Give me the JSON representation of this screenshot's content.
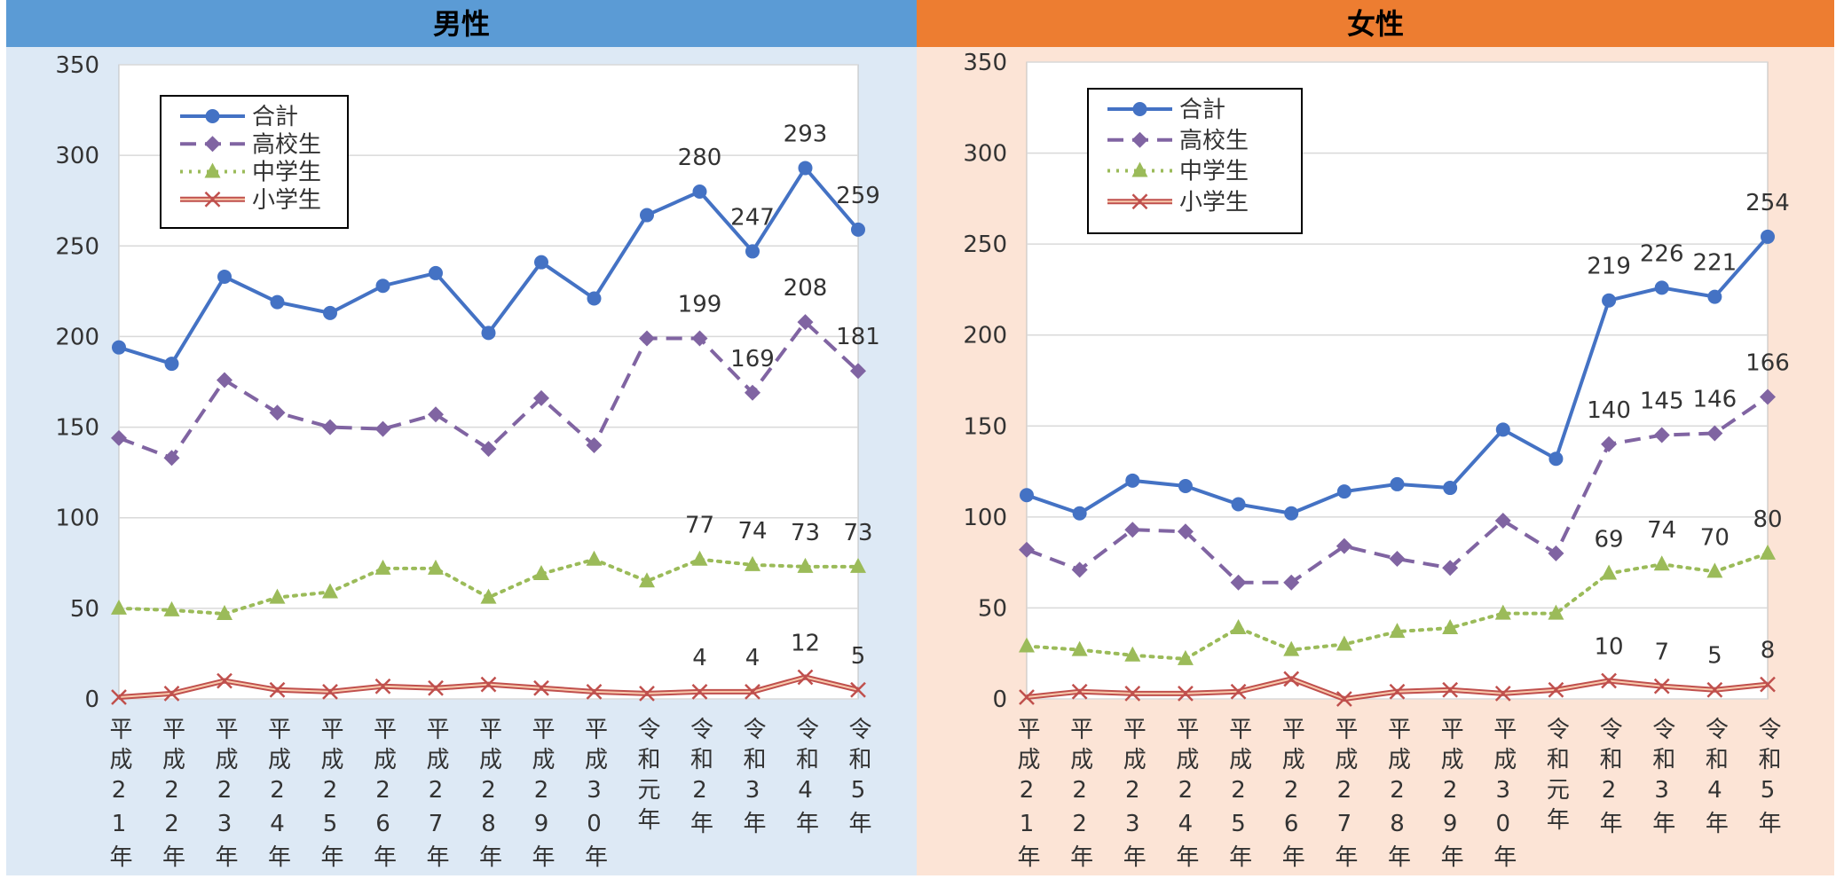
{
  "chart_data": [
    {
      "type": "line",
      "title": "男性",
      "categories": [
        "平成21年",
        "平成22年",
        "平成23年",
        "平成24年",
        "平成25年",
        "平成26年",
        "平成27年",
        "平成28年",
        "平成29年",
        "平成30年",
        "令和元年",
        "令和2年",
        "令和3年",
        "令和4年",
        "令和5年"
      ],
      "series": [
        {
          "name": "合計",
          "color": "#4472c4",
          "values": [
            194,
            185,
            233,
            219,
            213,
            228,
            235,
            202,
            241,
            221,
            267,
            280,
            247,
            293,
            259
          ]
        },
        {
          "name": "高校生",
          "color": "#8064a2",
          "values": [
            144,
            133,
            176,
            158,
            150,
            149,
            157,
            138,
            166,
            140,
            199,
            199,
            169,
            208,
            181
          ]
        },
        {
          "name": "中学生",
          "color": "#9bbb59",
          "values": [
            50,
            49,
            47,
            56,
            59,
            72,
            72,
            56,
            69,
            77,
            65,
            77,
            74,
            73,
            73
          ]
        },
        {
          "name": "小学生",
          "color": "#c0504d",
          "values": [
            1,
            3,
            10,
            5,
            4,
            7,
            6,
            8,
            6,
            4,
            3,
            4,
            4,
            12,
            5
          ]
        }
      ],
      "ylim": [
        0,
        350
      ],
      "yticks": [
        0,
        50,
        100,
        150,
        200,
        250,
        300,
        350
      ],
      "grid": true,
      "labeled_points": [
        11,
        12,
        13,
        14
      ]
    },
    {
      "type": "line",
      "title": "女性",
      "categories": [
        "平成21年",
        "平成22年",
        "平成23年",
        "平成24年",
        "平成25年",
        "平成26年",
        "平成27年",
        "平成28年",
        "平成29年",
        "平成30年",
        "令和元年",
        "令和2年",
        "令和3年",
        "令和4年",
        "令和5年"
      ],
      "series": [
        {
          "name": "合計",
          "color": "#4472c4",
          "values": [
            112,
            102,
            120,
            117,
            107,
            102,
            114,
            118,
            116,
            148,
            132,
            219,
            226,
            221,
            254
          ]
        },
        {
          "name": "高校生",
          "color": "#8064a2",
          "values": [
            82,
            71,
            93,
            92,
            64,
            64,
            84,
            77,
            72,
            98,
            80,
            140,
            145,
            146,
            166
          ]
        },
        {
          "name": "中学生",
          "color": "#9bbb59",
          "values": [
            29,
            27,
            24,
            22,
            39,
            27,
            30,
            37,
            39,
            47,
            47,
            69,
            74,
            70,
            80
          ]
        },
        {
          "name": "小学生",
          "color": "#c0504d",
          "values": [
            1,
            4,
            3,
            3,
            4,
            11,
            0,
            4,
            5,
            3,
            5,
            10,
            7,
            5,
            8
          ]
        }
      ],
      "ylim": [
        0,
        350
      ],
      "yticks": [
        0,
        50,
        100,
        150,
        200,
        250,
        300,
        350
      ],
      "grid": true,
      "labeled_points": [
        11,
        12,
        13,
        14
      ]
    }
  ]
}
